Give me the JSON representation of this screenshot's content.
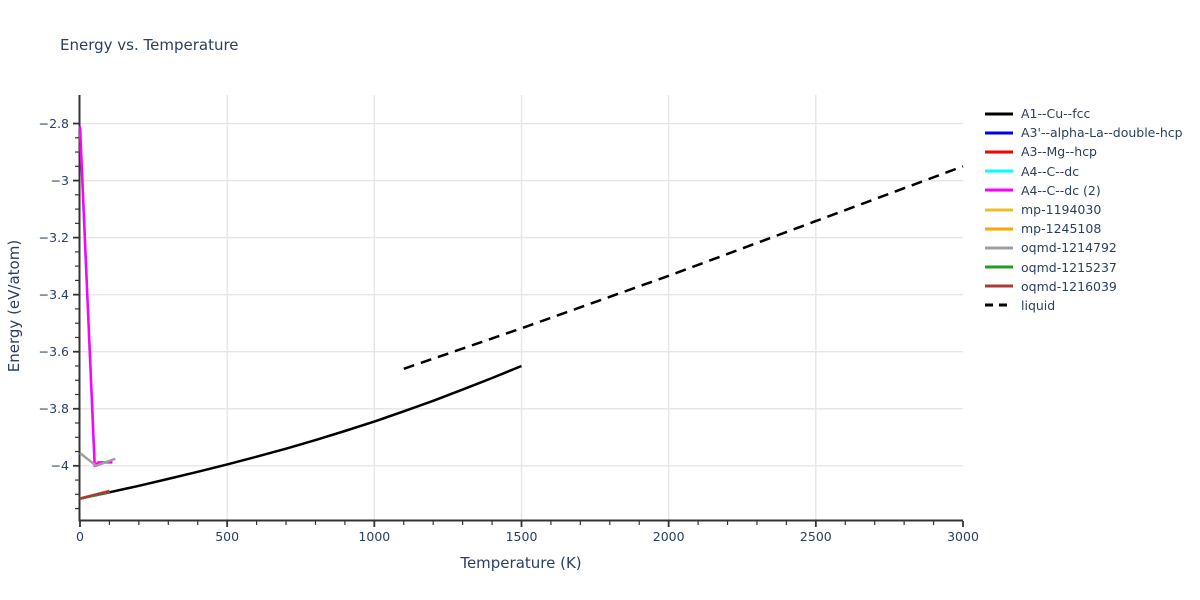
{
  "chart_data": {
    "type": "line",
    "title": "Energy vs. Temperature",
    "xlabel": "Temperature (K)",
    "ylabel": "Energy (eV/atom)",
    "xlim": [
      0,
      3000
    ],
    "ylim": [
      -4.19,
      -2.7
    ],
    "grid": true,
    "legend_position": "outside-top-right",
    "x_major_ticks": [
      0,
      500,
      1000,
      1500,
      2000,
      2500,
      3000
    ],
    "x_tick_labels": [
      "0",
      "500",
      "1000",
      "1500",
      "2000",
      "2500",
      "3000"
    ],
    "x_minor_step": 100,
    "y_major_ticks": [
      -4,
      -3.8,
      -3.6,
      -3.4,
      -3.2,
      -3,
      -2.8
    ],
    "y_tick_labels": [
      "−4",
      "−3.8",
      "−3.6",
      "−3.4",
      "−3.2",
      "−3",
      "−2.8"
    ],
    "y_minor_step": 0.05,
    "series": [
      {
        "name": "A1--Cu--fcc",
        "color": "#000000",
        "style": "solid",
        "points": [
          [
            0,
            -4.115
          ],
          [
            100,
            -4.093
          ],
          [
            200,
            -4.07
          ],
          [
            300,
            -4.046
          ],
          [
            400,
            -4.021
          ],
          [
            500,
            -3.995
          ],
          [
            600,
            -3.968
          ],
          [
            700,
            -3.94
          ],
          [
            800,
            -3.91
          ],
          [
            900,
            -3.878
          ],
          [
            1000,
            -3.845
          ],
          [
            1100,
            -3.809
          ],
          [
            1200,
            -3.772
          ],
          [
            1300,
            -3.733
          ],
          [
            1400,
            -3.692
          ],
          [
            1500,
            -3.65
          ]
        ]
      },
      {
        "name": "A3'--alpha-La--double-hcp",
        "color": "#0000ee",
        "style": "solid",
        "points": [
          [
            0,
            -4.115
          ],
          [
            100,
            -4.09
          ]
        ]
      },
      {
        "name": "A3--Mg--hcp",
        "color": "#ff0000",
        "style": "solid",
        "points": [
          [
            0,
            -4.115
          ],
          [
            100,
            -4.09
          ]
        ]
      },
      {
        "name": "A4--C--dc",
        "color": "#00ffff",
        "style": "solid",
        "points": [
          [
            0,
            -2.81
          ],
          [
            50,
            -4.0
          ]
        ]
      },
      {
        "name": "A4--C--dc (2)",
        "color": "#ff00ff",
        "style": "solid",
        "points": [
          [
            0,
            -2.81
          ],
          [
            50,
            -4.0
          ],
          [
            62,
            -3.988
          ],
          [
            110,
            -3.988
          ]
        ]
      },
      {
        "name": "mp-1194030",
        "color": "#e8c222",
        "style": "solid",
        "points": [
          [
            0,
            -4.115
          ],
          [
            100,
            -4.09
          ]
        ]
      },
      {
        "name": "mp-1245108",
        "color": "#ffa500",
        "style": "solid",
        "points": [
          [
            0,
            -4.115
          ],
          [
            100,
            -4.09
          ]
        ]
      },
      {
        "name": "oqmd-1214792",
        "color": "#a0a0a0",
        "style": "solid",
        "points": [
          [
            0,
            -3.955
          ],
          [
            55,
            -4.0
          ],
          [
            120,
            -3.975
          ]
        ]
      },
      {
        "name": "oqmd-1215237",
        "color": "#1f9e1f",
        "style": "solid",
        "points": [
          [
            0,
            -4.115
          ],
          [
            100,
            -4.09
          ]
        ]
      },
      {
        "name": "oqmd-1216039",
        "color": "#a93a3a",
        "style": "solid",
        "points": [
          [
            0,
            -4.115
          ],
          [
            100,
            -4.088
          ]
        ]
      },
      {
        "name": "liquid",
        "color": "#000000",
        "style": "dash",
        "points": [
          [
            1100,
            -3.66
          ],
          [
            1500,
            -3.518
          ],
          [
            2000,
            -3.334
          ],
          [
            2500,
            -3.142
          ],
          [
            3000,
            -2.95
          ]
        ]
      }
    ]
  },
  "style": {
    "text_color": "#2a3f5f",
    "grid_color": "#e6e6e6",
    "axis_color": "#333333",
    "background": "#ffffff"
  }
}
